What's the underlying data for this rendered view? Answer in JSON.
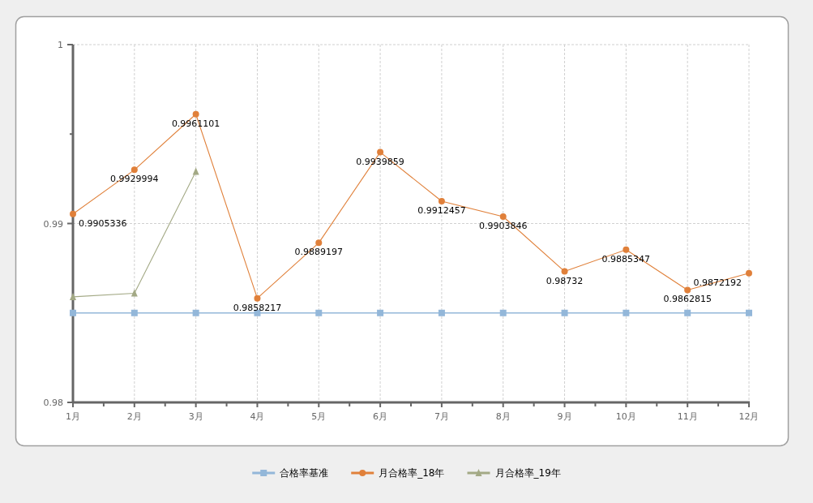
{
  "chart_data": {
    "type": "line",
    "categories": [
      "1月",
      "2月",
      "3月",
      "4月",
      "5月",
      "6月",
      "7月",
      "8月",
      "9月",
      "10月",
      "11月",
      "12月"
    ],
    "ylim": [
      0.98,
      1
    ],
    "yticks": [
      0.98,
      {
        "value": 0.985,
        "label": null
      },
      0.99,
      {
        "value": 0.995,
        "label": null
      },
      1
    ],
    "grid": true,
    "legend": "bottom",
    "line_style": "solid",
    "series": [
      {
        "name": "合格率基准",
        "color": "#93b7d9",
        "marker": "square",
        "values": [
          0.985,
          0.985,
          0.985,
          0.985,
          0.985,
          0.985,
          0.985,
          0.985,
          0.985,
          0.985,
          0.985,
          0.985
        ]
      },
      {
        "name": "月合格率_18年",
        "color": "#e0803a",
        "marker": "circle",
        "data_labels": true,
        "values": [
          0.9905336,
          0.9929994,
          0.9961101,
          0.9858217,
          0.9889197,
          0.9939859,
          0.9912457,
          0.9903846,
          0.98732,
          0.9885347,
          0.9862815,
          0.9872192
        ]
      },
      {
        "name": "月合格率_19年",
        "color": "#a3a985",
        "marker": "triangle",
        "values": [
          0.9859,
          0.9861,
          0.9929,
          null,
          null,
          null,
          null,
          null,
          null,
          null,
          null,
          null
        ]
      }
    ]
  }
}
